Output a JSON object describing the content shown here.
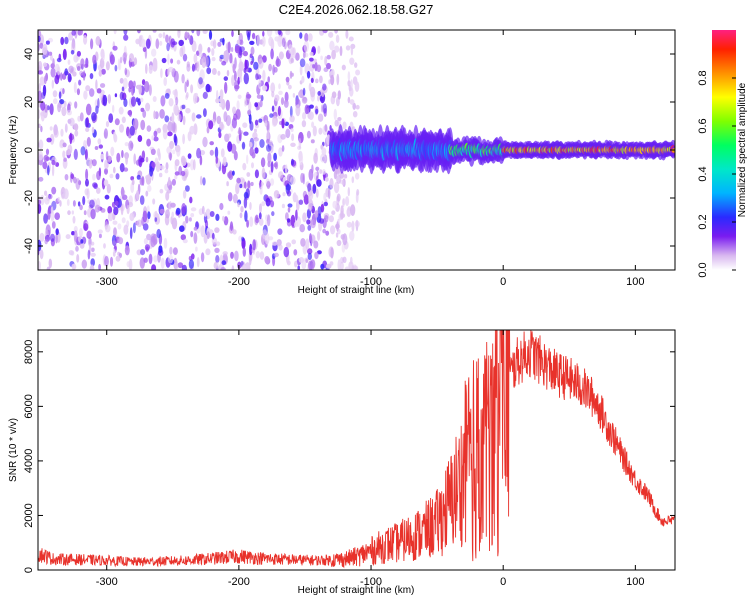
{
  "figure_title": "C2E4.2026.062.18.58.G27",
  "chart_data": [
    {
      "type": "heatmap",
      "panel": "spectrogram",
      "xlabel": "Height of straight line (km)",
      "ylabel": "Frequency (Hz)",
      "xlim": [
        -352,
        130
      ],
      "ylim": [
        -50,
        50
      ],
      "xticks": [
        -300,
        -200,
        -100,
        0,
        100
      ],
      "yticks": [
        -40,
        -20,
        0,
        20,
        40
      ],
      "colorbar": {
        "label": "Normalized spectral amplitude",
        "range": [
          0,
          1
        ],
        "ticks": [
          "0.0",
          "0.2",
          "0.4",
          "0.6",
          "0.8"
        ],
        "tick_values": [
          0.0,
          0.2,
          0.4,
          0.6,
          0.8
        ]
      },
      "regions": [
        {
          "name": "noise",
          "x_range": [
            -352,
            -130
          ],
          "freq_range": [
            -50,
            50
          ],
          "amplitude": 0.05
        },
        {
          "name": "transition-noise",
          "x_range": [
            -130,
            -110
          ],
          "freq_range": [
            -50,
            50
          ],
          "amplitude": 0.02
        },
        {
          "name": "signal-onset",
          "x_range": [
            -130,
            -40
          ],
          "center_freq": 0,
          "bandwidth_hz": 14,
          "amplitude": 0.3
        },
        {
          "name": "signal-mid",
          "x_range": [
            -40,
            0
          ],
          "center_freq": 0,
          "bandwidth_hz": 8,
          "amplitude": 0.5
        },
        {
          "name": "signal-strong",
          "x_range": [
            0,
            130
          ],
          "center_freq": 0,
          "bandwidth_hz": 6,
          "amplitude": 0.8
        }
      ]
    },
    {
      "type": "line",
      "panel": "snr",
      "xlabel": "Height of straight line (km)",
      "ylabel": "SNR (10 * v/v)",
      "xlim": [
        -352,
        130
      ],
      "ylim": [
        0,
        8800
      ],
      "xticks": [
        -300,
        -200,
        -100,
        0,
        100
      ],
      "yticks": [
        0,
        2000,
        4000,
        6000,
        8000
      ],
      "series": [
        {
          "name": "SNR",
          "color": "#e8322b",
          "x": [
            -352,
            -340,
            -320,
            -300,
            -280,
            -260,
            -240,
            -220,
            -200,
            -180,
            -160,
            -140,
            -120,
            -110,
            -100,
            -90,
            -80,
            -70,
            -60,
            -50,
            -40,
            -30,
            -20,
            -10,
            0,
            10,
            20,
            30,
            40,
            50,
            60,
            70,
            80,
            90,
            100,
            110,
            115,
            120,
            130
          ],
          "y": [
            600,
            400,
            380,
            350,
            300,
            320,
            350,
            420,
            500,
            420,
            380,
            350,
            400,
            500,
            700,
            900,
            1000,
            1200,
            1400,
            1700,
            2500,
            3500,
            4200,
            5000,
            6600,
            7600,
            8000,
            7600,
            7200,
            7000,
            6700,
            6200,
            5200,
            4200,
            3300,
            2700,
            2200,
            1800,
            1800
          ]
        }
      ]
    }
  ]
}
